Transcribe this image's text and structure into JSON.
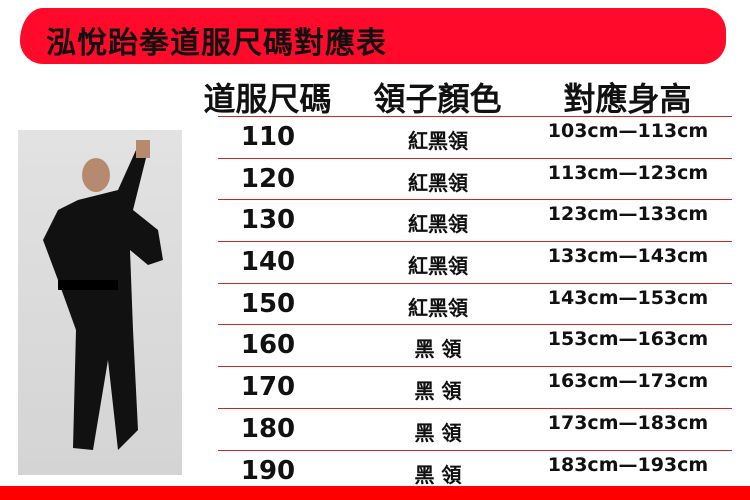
{
  "title": "泓悅跆拳道服尺碼對應表",
  "headers": [
    "道服尺碼",
    "領子顏色",
    "對應身高"
  ],
  "rows": [
    {
      "size": "110",
      "collar": "紅黑領",
      "height": "103cm—113cm"
    },
    {
      "size": "120",
      "collar": "紅黑領",
      "height": "113cm—123cm"
    },
    {
      "size": "130",
      "collar": "紅黑領",
      "height": "123cm—133cm"
    },
    {
      "size": "140",
      "collar": "紅黑領",
      "height": "133cm—143cm"
    },
    {
      "size": "150",
      "collar": "紅黑領",
      "height": "143cm—153cm"
    },
    {
      "size": "160",
      "collar": "黑 領",
      "height": "153cm—163cm"
    },
    {
      "size": "170",
      "collar": "黑 領",
      "height": "163cm—173cm"
    },
    {
      "size": "180",
      "collar": "黑 領",
      "height": "173cm—183cm"
    },
    {
      "size": "190",
      "collar": "黑 領",
      "height": "183cm—193cm"
    }
  ],
  "colors": {
    "banner": "#ff0a2a",
    "rule": "#c62828",
    "footer": "#ff0000"
  }
}
